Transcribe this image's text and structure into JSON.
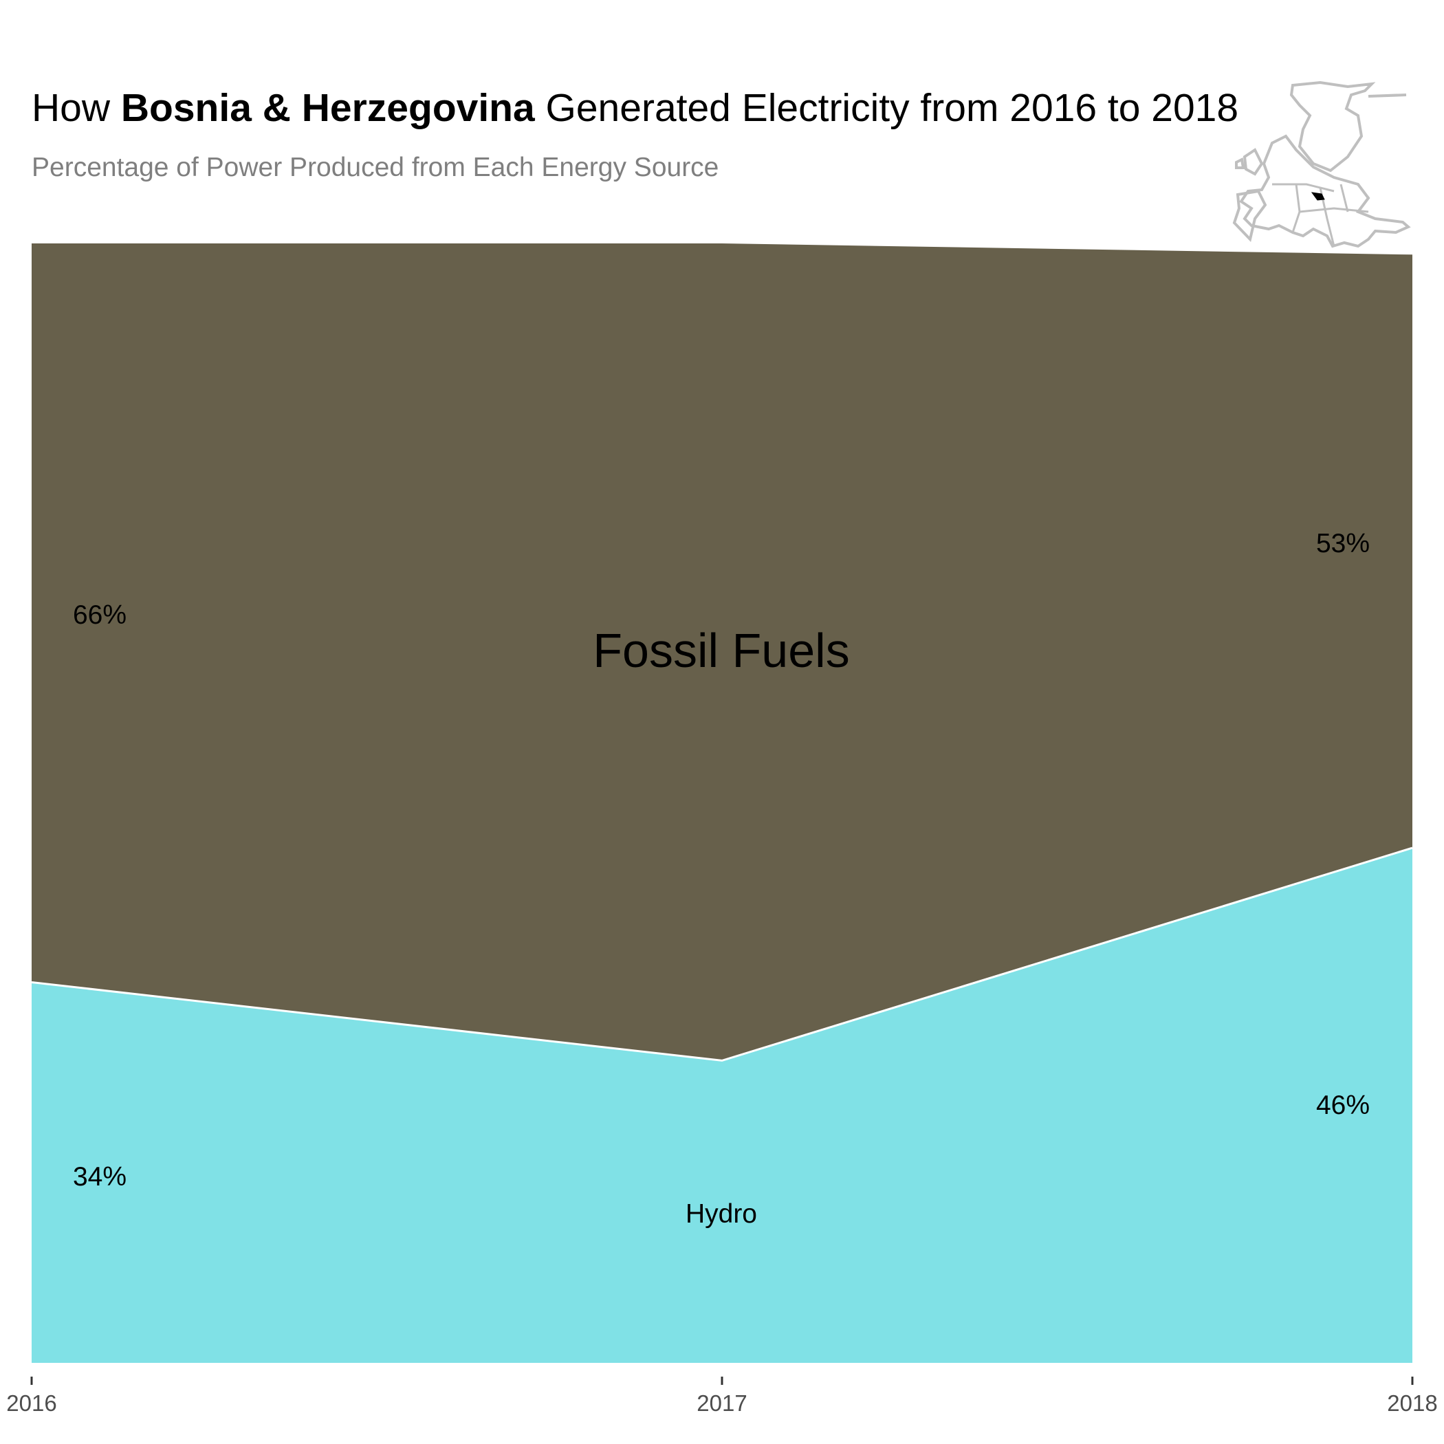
{
  "header": {
    "title_prefix": "How ",
    "title_country": "Bosnia & Herzegovina",
    "title_suffix": " Generated Electricity from 2016 to 2018",
    "subtitle": "Percentage of Power Produced from Each Energy Source"
  },
  "colors": {
    "fossil": "#67604b",
    "hydro": "#80e1e6",
    "boundary": "#ffffff",
    "map_outline": "#bfbfbf",
    "map_highlight": "#000000"
  },
  "map": {
    "icon": "europe-locator-map-icon",
    "highlight": "Bosnia & Herzegovina"
  },
  "chart_data": {
    "type": "area",
    "stacked": true,
    "x": [
      2016,
      2017,
      2018
    ],
    "xlim": [
      2016,
      2018
    ],
    "ylim": [
      0,
      100
    ],
    "grid": false,
    "legend": "none",
    "series": [
      {
        "name": "Hydro",
        "values": [
          34,
          27,
          46
        ],
        "labels": [
          "34%",
          "",
          "46%"
        ],
        "color": "#80e1e6"
      },
      {
        "name": "Fossil Fuels",
        "values": [
          66,
          73,
          53
        ],
        "labels": [
          "66%",
          "",
          "53%"
        ],
        "color": "#67604b"
      }
    ],
    "tick_labels": [
      "2016",
      "2017",
      "2018"
    ]
  }
}
